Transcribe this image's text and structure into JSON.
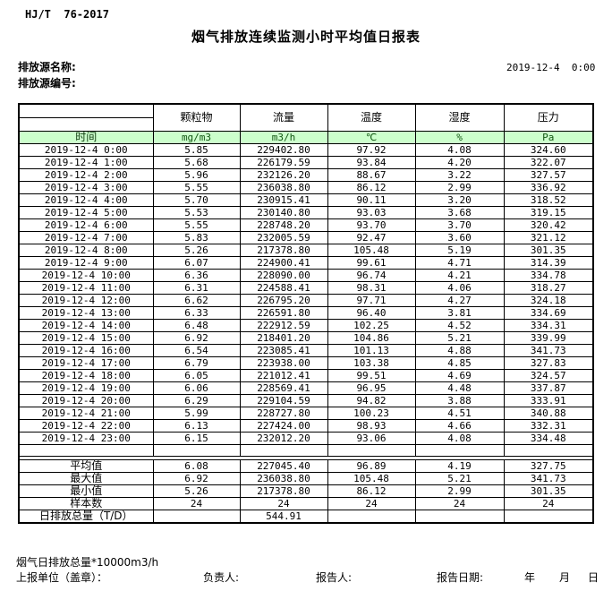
{
  "page": {
    "doc_code": "HJ/T  76-2017",
    "title": "烟气排放连续监测小时平均值日报表",
    "source_name_label": "排放源名称:",
    "source_code_label": "排放源编号:",
    "report_datetime": "2019-12-4  0:00"
  },
  "table": {
    "time_header": "时间",
    "columns": [
      {
        "name": "颗粒物",
        "unit": "mg/m3"
      },
      {
        "name": "流量",
        "unit": "m3/h"
      },
      {
        "name": "温度",
        "unit": "℃"
      },
      {
        "name": "湿度",
        "unit": "%"
      },
      {
        "name": "压力",
        "unit": "Pa"
      }
    ],
    "rows": [
      {
        "time": "2019-12-4 0:00",
        "values": [
          "5.85",
          "229402.80",
          "97.92",
          "4.08",
          "324.60"
        ]
      },
      {
        "time": "2019-12-4 1:00",
        "values": [
          "5.68",
          "226179.59",
          "93.84",
          "4.20",
          "322.07"
        ]
      },
      {
        "time": "2019-12-4 2:00",
        "values": [
          "5.96",
          "232126.20",
          "88.67",
          "3.22",
          "327.57"
        ]
      },
      {
        "time": "2019-12-4 3:00",
        "values": [
          "5.55",
          "236038.80",
          "86.12",
          "2.99",
          "336.92"
        ]
      },
      {
        "time": "2019-12-4 4:00",
        "values": [
          "5.70",
          "230915.41",
          "90.11",
          "3.20",
          "318.52"
        ]
      },
      {
        "time": "2019-12-4 5:00",
        "values": [
          "5.53",
          "230140.80",
          "93.03",
          "3.68",
          "319.15"
        ]
      },
      {
        "time": "2019-12-4 6:00",
        "values": [
          "5.55",
          "228748.20",
          "93.70",
          "3.70",
          "320.42"
        ]
      },
      {
        "time": "2019-12-4 7:00",
        "values": [
          "5.83",
          "232005.59",
          "92.47",
          "3.60",
          "321.12"
        ]
      },
      {
        "time": "2019-12-4 8:00",
        "values": [
          "5.26",
          "217378.80",
          "105.48",
          "5.19",
          "301.35"
        ]
      },
      {
        "time": "2019-12-4 9:00",
        "values": [
          "6.07",
          "224900.41",
          "99.61",
          "4.71",
          "314.39"
        ]
      },
      {
        "time": "2019-12-4 10:00",
        "values": [
          "6.36",
          "228090.00",
          "96.74",
          "4.21",
          "334.78"
        ]
      },
      {
        "time": "2019-12-4 11:00",
        "values": [
          "6.31",
          "224588.41",
          "98.31",
          "4.06",
          "318.27"
        ]
      },
      {
        "time": "2019-12-4 12:00",
        "values": [
          "6.62",
          "226795.20",
          "97.71",
          "4.27",
          "324.18"
        ]
      },
      {
        "time": "2019-12-4 13:00",
        "values": [
          "6.33",
          "226591.80",
          "96.40",
          "3.81",
          "334.69"
        ]
      },
      {
        "time": "2019-12-4 14:00",
        "values": [
          "6.48",
          "222912.59",
          "102.25",
          "4.52",
          "334.31"
        ]
      },
      {
        "time": "2019-12-4 15:00",
        "values": [
          "6.92",
          "218401.20",
          "104.86",
          "5.21",
          "339.99"
        ]
      },
      {
        "time": "2019-12-4 16:00",
        "values": [
          "6.54",
          "223085.41",
          "101.13",
          "4.88",
          "341.73"
        ]
      },
      {
        "time": "2019-12-4 17:00",
        "values": [
          "6.79",
          "223938.00",
          "103.38",
          "4.85",
          "327.83"
        ]
      },
      {
        "time": "2019-12-4 18:00",
        "values": [
          "6.05",
          "221012.41",
          "99.51",
          "4.69",
          "324.57"
        ]
      },
      {
        "time": "2019-12-4 19:00",
        "values": [
          "6.06",
          "228569.41",
          "96.95",
          "4.48",
          "337.87"
        ]
      },
      {
        "time": "2019-12-4 20:00",
        "values": [
          "6.29",
          "229104.59",
          "94.82",
          "3.88",
          "333.91"
        ]
      },
      {
        "time": "2019-12-4 21:00",
        "values": [
          "5.99",
          "228727.80",
          "100.23",
          "4.51",
          "340.88"
        ]
      },
      {
        "time": "2019-12-4 22:00",
        "values": [
          "6.13",
          "227424.00",
          "98.93",
          "4.66",
          "332.31"
        ]
      },
      {
        "time": "2019-12-4 23:00",
        "values": [
          "6.15",
          "232012.20",
          "93.06",
          "4.08",
          "334.48"
        ]
      }
    ],
    "summary": [
      {
        "label": "平均值",
        "values": [
          "6.08",
          "227045.40",
          "96.89",
          "4.19",
          "327.75"
        ]
      },
      {
        "label": "最大值",
        "values": [
          "6.92",
          "236038.80",
          "105.48",
          "5.21",
          "341.73"
        ]
      },
      {
        "label": "最小值",
        "values": [
          "5.26",
          "217378.80",
          "86.12",
          "2.99",
          "301.35"
        ]
      },
      {
        "label": "样本数",
        "values": [
          "24",
          "24",
          "24",
          "24",
          "24"
        ]
      },
      {
        "label": "日排放总量（T/D）",
        "values": [
          "",
          "544.91",
          "",
          "",
          ""
        ]
      }
    ]
  },
  "footer": {
    "note": "烟气日排放总量*10000m3/h",
    "unit_label": "上报单位（盖章）：",
    "responsible_label": "负责人:",
    "reporter_label": "报告人:",
    "report_date_label": "报告日期:",
    "year_label": "年",
    "month_label": "月",
    "day_label": "日"
  },
  "colors": {
    "unit_row_bg": "#ccffcc",
    "unit_row_text": "#115511",
    "table_border": "#000000",
    "page_bg": "#ffffff"
  }
}
